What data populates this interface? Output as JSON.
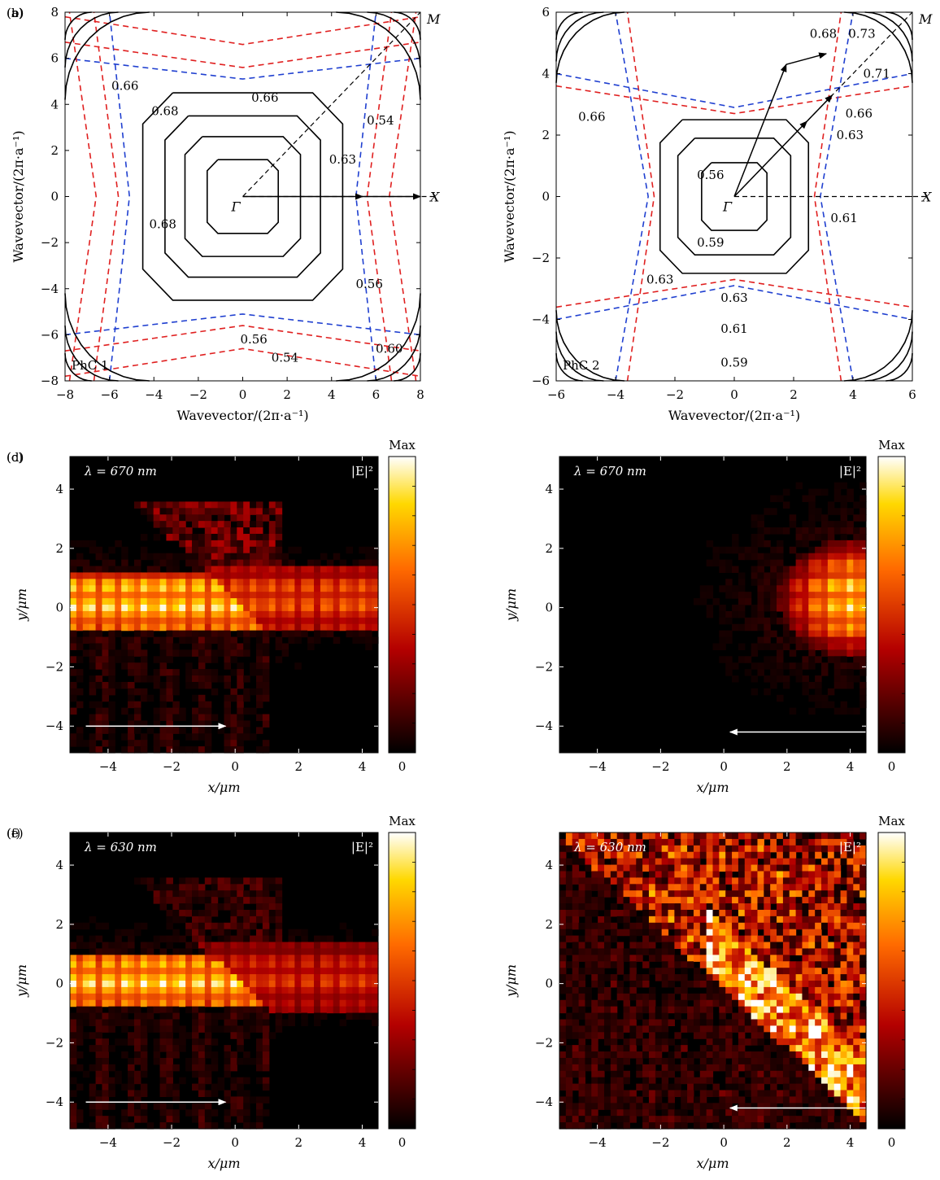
{
  "figure": {
    "background": "#ffffff"
  },
  "chart_data": [
    {
      "panel": "a",
      "panel_label": "(a)",
      "type": "contour",
      "crystal_label": "PhC 1",
      "xlabel": "Wavevector/(2π·a⁻¹)",
      "ylabel": "Wavevector/(2π·a⁻¹)",
      "xlim": [
        -8,
        8
      ],
      "ylim": [
        -8,
        8
      ],
      "xticks": [
        -8,
        -6,
        -4,
        -2,
        0,
        2,
        4,
        6,
        8
      ],
      "yticks": [
        -8,
        -6,
        -4,
        -2,
        0,
        2,
        4,
        6,
        8
      ],
      "symmetry_points": [
        {
          "name": "Γ",
          "x": 0,
          "y": 0
        },
        {
          "name": "X",
          "x": 8,
          "y": 0
        },
        {
          "name": "M",
          "x": 8,
          "y": 8
        }
      ],
      "contours": [
        {
          "level": 0.68,
          "color": "#000000",
          "dashed": false,
          "shape": "square",
          "half": 1.6
        },
        {
          "level": 0.68,
          "color": "#000000",
          "dashed": false,
          "shape": "square",
          "half": 2.6
        },
        {
          "level": 0.68,
          "color": "#000000",
          "dashed": false,
          "shape": "square",
          "half": 3.5
        },
        {
          "level": 0.66,
          "color": "#000000",
          "dashed": false,
          "shape": "square",
          "half": 4.5
        },
        {
          "level": 0.66,
          "color": "#2040d0",
          "dashed": true,
          "shape": "pinched",
          "depth": 5.6,
          "bend": 0.5
        },
        {
          "level": 0.63,
          "color": "#e02020",
          "dashed": true,
          "shape": "pinched",
          "depth": 6.3,
          "bend": 0.7
        },
        {
          "level": 0.6,
          "color": "#e02020",
          "dashed": true,
          "shape": "pinched",
          "depth": 7.4,
          "bend": 0.8
        },
        {
          "level": 0.56,
          "color": "#000000",
          "dashed": false,
          "shape": "arc",
          "bend": 0.8,
          "reach": 1.2
        },
        {
          "level": 0.54,
          "color": "#000000",
          "dashed": false,
          "shape": "arc",
          "bend": 2.0,
          "reach": 2.4
        },
        {
          "level": 0.54,
          "color": "#000000",
          "dashed": false,
          "shape": "arc",
          "bend": 3.2,
          "reach": 3.8
        }
      ],
      "contour_labels": [
        {
          "text": "0.66",
          "x": -5.3,
          "y": 4.8
        },
        {
          "text": "0.68",
          "x": -3.5,
          "y": 3.7
        },
        {
          "text": "0.66",
          "x": 1.0,
          "y": 4.3
        },
        {
          "text": "0.54",
          "x": 6.2,
          "y": 3.3
        },
        {
          "text": "0.63",
          "x": 4.5,
          "y": 1.6
        },
        {
          "text": "0.68",
          "x": -3.6,
          "y": -1.2
        },
        {
          "text": "0.56",
          "x": 5.7,
          "y": -3.8
        },
        {
          "text": "0.56",
          "x": 0.5,
          "y": -6.2
        },
        {
          "text": "0.60",
          "x": 6.6,
          "y": -6.6
        },
        {
          "text": "0.54",
          "x": 1.9,
          "y": -7.0
        }
      ],
      "arrows": [
        {
          "from": [
            0,
            0
          ],
          "to": [
            5.4,
            0
          ]
        },
        {
          "from": [
            5.2,
            0
          ],
          "to": [
            8.0,
            0
          ]
        }
      ]
    },
    {
      "panel": "b",
      "panel_label": "(b)",
      "type": "contour",
      "crystal_label": "PhC 2",
      "xlabel": "Wavevector/(2π·a⁻¹)",
      "ylabel": "Wavevector/(2π·a⁻¹)",
      "xlim": [
        -6,
        6
      ],
      "ylim": [
        -6,
        6
      ],
      "xticks": [
        -6,
        -4,
        -2,
        0,
        2,
        4,
        6
      ],
      "yticks": [
        -6,
        -4,
        -2,
        0,
        2,
        4,
        6
      ],
      "symmetry_points": [
        {
          "name": "Γ",
          "x": 0,
          "y": 0
        },
        {
          "name": "X",
          "x": 6,
          "y": 0
        },
        {
          "name": "M",
          "x": 6,
          "y": 6
        }
      ],
      "contours": [
        {
          "level": 0.59,
          "color": "#000000",
          "dashed": false,
          "shape": "square",
          "half": 1.1
        },
        {
          "level": 0.59,
          "color": "#000000",
          "dashed": false,
          "shape": "square",
          "half": 1.9
        },
        {
          "level": 0.61,
          "color": "#000000",
          "dashed": false,
          "shape": "square",
          "half": 2.5
        },
        {
          "level": 0.63,
          "color": "#e02020",
          "dashed": true,
          "shape": "pinched",
          "depth": 3.2,
          "bend": 0.5
        },
        {
          "level": 0.66,
          "color": "#2040d0",
          "dashed": true,
          "shape": "pinched",
          "depth": 3.6,
          "bend": 0.7
        },
        {
          "level": 0.68,
          "color": "#000000",
          "dashed": false,
          "shape": "arc",
          "bend": 0.5,
          "reach": 0.9
        },
        {
          "level": 0.71,
          "color": "#000000",
          "dashed": false,
          "shape": "arc",
          "bend": 1.1,
          "reach": 1.6
        },
        {
          "level": 0.73,
          "color": "#000000",
          "dashed": false,
          "shape": "arc",
          "bend": 1.7,
          "reach": 2.3
        }
      ],
      "contour_labels": [
        {
          "text": "0.68",
          "x": 3.0,
          "y": 5.3
        },
        {
          "text": "0.73",
          "x": 4.3,
          "y": 5.3
        },
        {
          "text": "0.71",
          "x": 4.8,
          "y": 4.0
        },
        {
          "text": "0.66",
          "x": -4.8,
          "y": 2.6
        },
        {
          "text": "0.66",
          "x": 4.2,
          "y": 2.7
        },
        {
          "text": "0.63",
          "x": 3.9,
          "y": 2.0
        },
        {
          "text": "0.56",
          "x": -0.8,
          "y": 0.7
        },
        {
          "text": "0.61",
          "x": 3.7,
          "y": -0.7
        },
        {
          "text": "0.59",
          "x": -0.8,
          "y": -1.5
        },
        {
          "text": "0.63",
          "x": -2.5,
          "y": -2.7
        },
        {
          "text": "0.63",
          "x": 0.0,
          "y": -3.3
        },
        {
          "text": "0.61",
          "x": 0.0,
          "y": -4.3
        },
        {
          "text": "0.59",
          "x": 0.0,
          "y": -5.4
        }
      ],
      "arrows": [
        {
          "from": [
            0,
            0
          ],
          "to": [
            1.75,
            4.3
          ]
        },
        {
          "from": [
            1.75,
            4.3
          ],
          "to": [
            3.1,
            4.65
          ]
        },
        {
          "from": [
            0,
            0
          ],
          "to": [
            2.45,
            2.45
          ]
        },
        {
          "from": [
            2.4,
            2.4
          ],
          "to": [
            3.3,
            3.3
          ]
        }
      ]
    },
    {
      "panel": "c",
      "panel_label": "(c)",
      "type": "heatmap",
      "quantity": "|E|²",
      "wavelength_label": "λ = 670 nm",
      "xlabel": "x/μm",
      "ylabel": "y/μm",
      "xlim": [
        -5.2,
        4.5
      ],
      "ylim": [
        -4.9,
        5.1
      ],
      "xticks": [
        -4,
        -2,
        0,
        2,
        4
      ],
      "yticks": [
        -4,
        -2,
        0,
        2,
        4
      ],
      "colorbar": {
        "max_label": "Max",
        "min_label": "0"
      },
      "beam": {
        "y0": 0.2,
        "halfwidth": 1.0,
        "interface_slope": 1.0
      },
      "left_intensity": 1.0,
      "right_intensity": 0.72,
      "right_halfwidth": 1.1,
      "diffraction": 0.35,
      "source_arrow": {
        "from": -4.7,
        "to": -0.3,
        "y": -4.0,
        "direction": "right"
      }
    },
    {
      "panel": "d",
      "panel_label": "(d)",
      "type": "heatmap",
      "quantity": "|E|²",
      "wavelength_label": "λ = 670 nm",
      "xlabel": "x/μm",
      "ylabel": "y/μm",
      "xlim": [
        -5.2,
        4.5
      ],
      "ylim": [
        -4.9,
        5.1
      ],
      "xticks": [
        -4,
        -2,
        0,
        2,
        4
      ],
      "yticks": [
        -4,
        -2,
        0,
        2,
        4
      ],
      "colorbar": {
        "max_label": "Max",
        "min_label": "0"
      },
      "spot": {
        "x": 4.3,
        "y": 0.3,
        "rx": 2.6,
        "ry": 2.0
      },
      "background": 0.12,
      "source_arrow": {
        "from": 4.5,
        "to": 0.2,
        "y": -4.2,
        "direction": "left"
      }
    },
    {
      "panel": "e",
      "panel_label": "(e)",
      "type": "heatmap",
      "quantity": "|E|²",
      "wavelength_label": "λ = 630 nm",
      "xlabel": "x/μm",
      "ylabel": "y/μm",
      "xlim": [
        -5.2,
        4.5
      ],
      "ylim": [
        -4.9,
        5.1
      ],
      "xticks": [
        -4,
        -2,
        0,
        2,
        4
      ],
      "yticks": [
        -4,
        -2,
        0,
        2,
        4
      ],
      "colorbar": {
        "max_label": "Max",
        "min_label": "0"
      },
      "beam": {
        "y0": 0.1,
        "halfwidth": 0.9,
        "interface_slope": 1.0
      },
      "left_intensity": 1.0,
      "right_intensity": 0.6,
      "right_halfwidth": 1.1,
      "diffraction": 0.2,
      "source_arrow": {
        "from": -4.7,
        "to": -0.3,
        "y": -4.0,
        "direction": "right"
      }
    },
    {
      "panel": "f",
      "panel_label": "(f)",
      "type": "heatmap",
      "quantity": "|E|²",
      "wavelength_label": "λ = 630 nm",
      "xlabel": "x/μm",
      "ylabel": "y/μm",
      "xlim": [
        -5.2,
        4.5
      ],
      "ylim": [
        -4.9,
        5.1
      ],
      "xticks": [
        -4,
        -2,
        0,
        2,
        4
      ],
      "yticks": [
        -4,
        -2,
        0,
        2,
        4
      ],
      "colorbar": {
        "max_label": "Max",
        "min_label": "0"
      },
      "interface": {
        "x0": -1.0,
        "y0": 0.8,
        "slope": -1.0
      },
      "bright_intensity": 0.8,
      "dark_intensity": 0.25,
      "source_arrow": {
        "from": 4.5,
        "to": 0.2,
        "y": -4.2,
        "direction": "left"
      }
    }
  ]
}
